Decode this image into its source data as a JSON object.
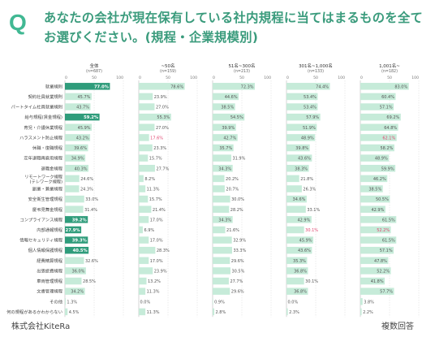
{
  "header": {
    "q_mark": "Q",
    "title": "あなたの会社が現在保有している社内規程に当てはまるものを全てお選びください。(規程・企業規模別)"
  },
  "footer": {
    "company": "株式会社KiteRa",
    "note": "複数回答"
  },
  "colors": {
    "bar_normal": "#c6ebd9",
    "bar_highlight": "#2f9c7b",
    "value_normal": "#555555",
    "value_highlight_text": "#ffffff",
    "value_red": "#e0456f",
    "grid": "#d8d8d8"
  },
  "chart_data": {
    "type": "bar",
    "orientation": "horizontal",
    "categories": [
      "就業規則",
      "契約社員就業規則",
      "パートタイム社員就業規則",
      "給与規程(賃金規程)",
      "育児・介護休業規程",
      "ハラスメント防止規程",
      "休職・復職規程",
      "定年退職再雇用規程",
      "退職金規程",
      "リモートワーク規程(テレワーク規程)",
      "副業・兼業規程",
      "安全衛生管理規程",
      "慶弔見舞金規程",
      "コンプライアンス規程",
      "内部通報規程",
      "情報セキュリティ規程",
      "個人情報保護規程",
      "経費精算規程",
      "出張旅費規程",
      "車両管理規程",
      "文書管理規程",
      "その他",
      "何の規程があるかわからない"
    ],
    "panels": [
      {
        "title": "全体",
        "n": "(n=687)",
        "axis": [
          "0",
          "50",
          "100"
        ],
        "values": [
          77.0,
          45.7,
          43.7,
          59.2,
          45.9,
          43.2,
          39.6,
          34.9,
          40.3,
          24.6,
          24.3,
          33.0,
          31.4,
          39.2,
          27.9,
          39.3,
          40.5,
          32.6,
          36.0,
          28.5,
          34.2,
          1.3,
          4.5
        ],
        "highlight": [
          0,
          3,
          13,
          14,
          15,
          16
        ],
        "red": []
      },
      {
        "title": "~50名",
        "n": "(n=159)",
        "axis": [
          "0",
          "50",
          "100"
        ],
        "values": [
          78.6,
          23.9,
          27.0,
          55.3,
          27.0,
          17.6,
          23.3,
          15.7,
          27.7,
          8.2,
          11.3,
          15.7,
          21.4,
          17.0,
          6.9,
          17.0,
          28.3,
          17.0,
          23.9,
          13.2,
          11.3,
          0.0,
          11.3
        ],
        "highlight": [],
        "red": [
          5
        ]
      },
      {
        "title": "51名~300名",
        "n": "(n=213)",
        "axis": [
          "0",
          "50",
          "100"
        ],
        "values": [
          72.3,
          44.6,
          38.5,
          54.5,
          39.9,
          42.7,
          35.7,
          31.9,
          34.3,
          20.2,
          20.7,
          30.0,
          28.2,
          34.3,
          21.6,
          32.9,
          33.3,
          29.6,
          30.5,
          27.7,
          29.6,
          0.9,
          2.8
        ],
        "highlight": [],
        "red": []
      },
      {
        "title": "301名~1,000名",
        "n": "(n=133)",
        "axis": [
          "0",
          "50",
          "100"
        ],
        "values": [
          74.4,
          53.4,
          53.4,
          57.9,
          51.9,
          48.9,
          39.8,
          43.6,
          38.3,
          21.8,
          26.3,
          34.6,
          33.1,
          42.9,
          30.1,
          45.9,
          43.6,
          35.3,
          36.8,
          30.1,
          36.8,
          0.0,
          2.3
        ],
        "highlight": [],
        "red": [
          14
        ]
      },
      {
        "title": "1,001名~",
        "n": "(n=182)",
        "axis": [
          "0",
          "50",
          "100"
        ],
        "values": [
          83.0,
          60.4,
          57.1,
          69.2,
          64.8,
          62.1,
          58.2,
          48.9,
          59.9,
          46.2,
          38.5,
          50.5,
          42.9,
          61.5,
          52.2,
          61.5,
          57.1,
          47.8,
          52.2,
          41.8,
          57.7,
          3.8,
          2.2
        ],
        "highlight": [],
        "red": [
          5,
          14
        ]
      }
    ]
  }
}
